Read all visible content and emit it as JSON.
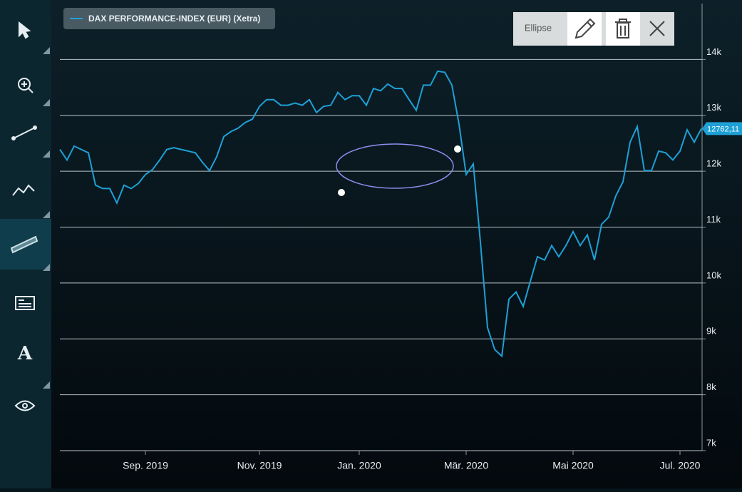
{
  "toolbar": {
    "label": "Ellipse"
  },
  "chart_data": {
    "type": "line",
    "categories": [
      null,
      null,
      null,
      null,
      null,
      null,
      null,
      null,
      null,
      null,
      null,
      null,
      "Sep. 2019",
      null,
      null,
      null,
      null,
      null,
      null,
      null,
      null,
      null,
      null,
      null,
      null,
      null,
      null,
      null,
      "Nov. 2019",
      null,
      null,
      null,
      null,
      null,
      null,
      null,
      null,
      null,
      null,
      null,
      null,
      null,
      "Jan. 2020",
      null,
      null,
      null,
      null,
      null,
      null,
      null,
      null,
      null,
      null,
      null,
      null,
      null,
      null,
      "Mär. 2020",
      null,
      null,
      null,
      null,
      null,
      null,
      null,
      null,
      null,
      null,
      null,
      null,
      null,
      null,
      "Mai 2020",
      null,
      null,
      null,
      null,
      null,
      null,
      null,
      null,
      null,
      null,
      null,
      null,
      null,
      null,
      "Jul. 2020",
      null,
      null,
      null
    ],
    "series": [
      {
        "name": "DAX PERFORMANCE-INDEX (EUR) (Xetra)",
        "color": "#1ea0d6",
        "values": [
          12390,
          12200,
          12450,
          12390,
          12330,
          11750,
          11690,
          11690,
          11430,
          11750,
          11690,
          11780,
          11940,
          12030,
          12200,
          12390,
          12420,
          12390,
          12360,
          12330,
          12160,
          12010,
          12260,
          12620,
          12710,
          12770,
          12870,
          12930,
          13160,
          13280,
          13280,
          13180,
          13180,
          13220,
          13180,
          13280,
          13050,
          13160,
          13180,
          13410,
          13280,
          13350,
          13350,
          13180,
          13480,
          13440,
          13560,
          13480,
          13480,
          13280,
          13090,
          13540,
          13540,
          13790,
          13770,
          13540,
          12840,
          11940,
          12130,
          10730,
          9200,
          8810,
          8690,
          9710,
          9840,
          9580,
          10030,
          10470,
          10410,
          10670,
          10470,
          10670,
          10920,
          10670,
          10860,
          10410,
          11050,
          11180,
          11560,
          11810,
          12520,
          12800,
          12010,
          12010,
          12360,
          12330,
          12200,
          12360,
          12740,
          12520,
          12762.11
        ],
        "value_labels": [
          null,
          null,
          null,
          null,
          null,
          null,
          null,
          null,
          null,
          null,
          null,
          null,
          null,
          null,
          null,
          null,
          null,
          null,
          null,
          null,
          null,
          null,
          null,
          null,
          null,
          null,
          null,
          null,
          null,
          null,
          null,
          null,
          null,
          null,
          null,
          null,
          null,
          null,
          null,
          null,
          null,
          null,
          null,
          null,
          null,
          null,
          null,
          null,
          null,
          null,
          null,
          null,
          null,
          null,
          null,
          null,
          null,
          null,
          null,
          null,
          null,
          null,
          null,
          null,
          null,
          null,
          null,
          null,
          null,
          null,
          null,
          null,
          null,
          null,
          null,
          null,
          null,
          null,
          null,
          null,
          null,
          null,
          null,
          null,
          null,
          null,
          null,
          null,
          null,
          null,
          "12762,11"
        ]
      }
    ],
    "ylim": [
      7000,
      15000
    ],
    "yticks": [
      {
        "value": 7000,
        "label": "7k"
      },
      {
        "value": 8000,
        "label": "8k"
      },
      {
        "value": 9000,
        "label": "9k"
      },
      {
        "value": 10000,
        "label": "10k"
      },
      {
        "value": 11000,
        "label": "11k"
      },
      {
        "value": 12000,
        "label": "12k"
      },
      {
        "value": 13000,
        "label": "13k"
      },
      {
        "value": 14000,
        "label": "14k"
      }
    ],
    "grid": true
  }
}
